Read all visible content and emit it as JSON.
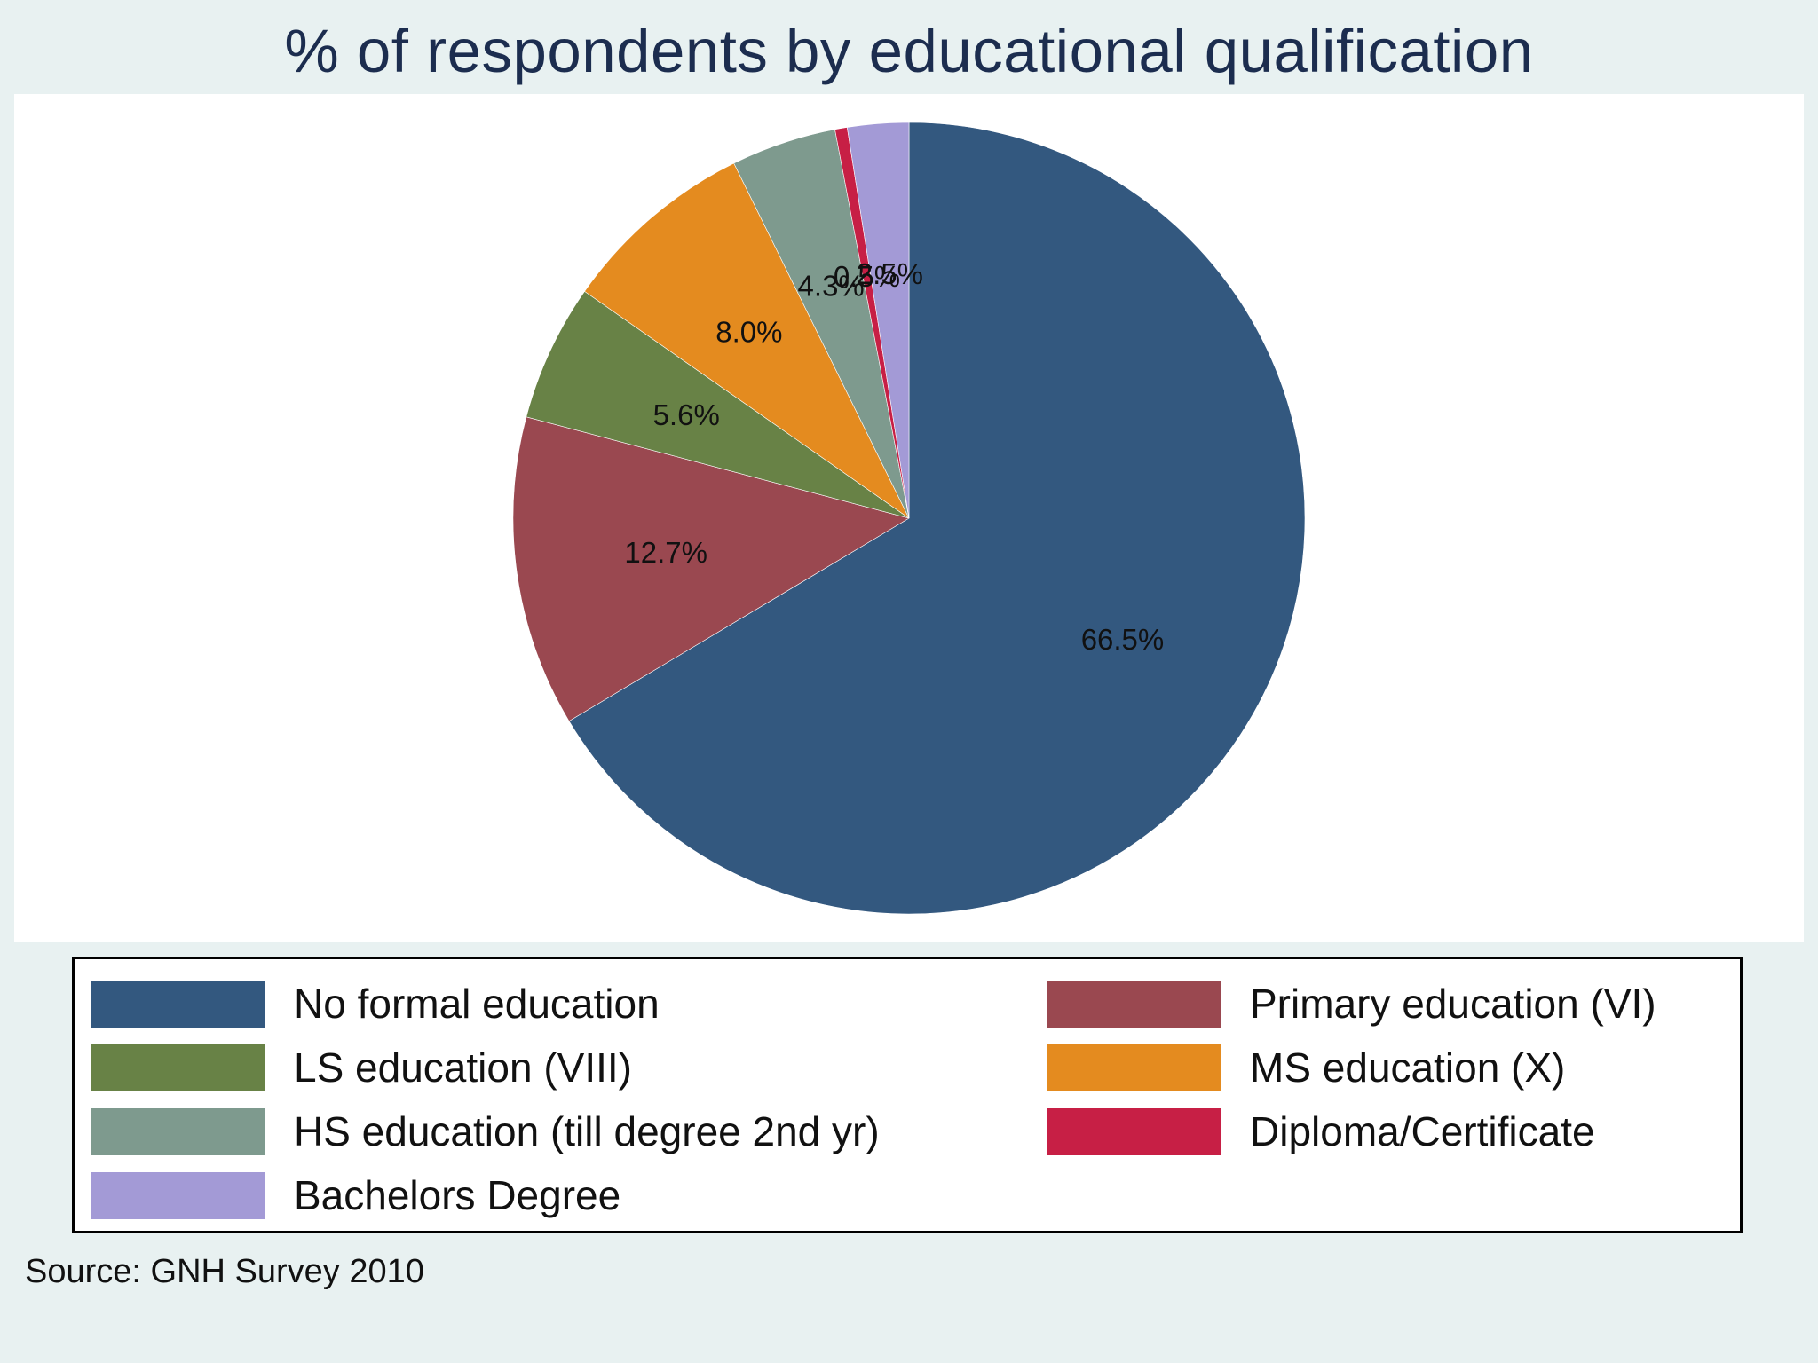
{
  "title": "% of respondents by educational qualification",
  "source": "Source: GNH Survey 2010",
  "chart_data": {
    "type": "pie",
    "title": "% of respondents by educational qualification",
    "direction": "clockwise",
    "start": "12 o'clock",
    "label_format": "one decimal with %",
    "legend_placement": "bottom",
    "slices": [
      {
        "label": "No formal education",
        "value": 66.5,
        "display": "66.5%",
        "color": "#33587f"
      },
      {
        "label": "Primary education (VI)",
        "value": 12.7,
        "display": "12.7%",
        "color": "#9a4850"
      },
      {
        "label": "LS education (VIII)",
        "value": 5.6,
        "display": "5.6%",
        "color": "#688246"
      },
      {
        "label": "MS education (X)",
        "value": 8.0,
        "display": "8.0%",
        "color": "#e48b1f"
      },
      {
        "label": "HS education (till degree 2nd yr)",
        "value": 4.3,
        "display": "4.3%",
        "color": "#7e9a8e"
      },
      {
        "label": "Diploma/Certificate",
        "value": 0.5,
        "display": "0.5%",
        "color": "#c71f45"
      },
      {
        "label": "Bachelors Degree",
        "value": 2.5,
        "display": "2.5%",
        "color": "#a39ad6"
      }
    ]
  },
  "legend": {
    "items": [
      {
        "label": "No formal education",
        "color": "#33587f"
      },
      {
        "label": "Primary education (VI)",
        "color": "#9a4850"
      },
      {
        "label": "LS education (VIII)",
        "color": "#688246"
      },
      {
        "label": "MS education (X)",
        "color": "#e48b1f"
      },
      {
        "label": "HS education (till degree 2nd yr)",
        "color": "#7e9a8e"
      },
      {
        "label": "Diploma/Certificate",
        "color": "#c71f45"
      },
      {
        "label": "Bachelors Degree",
        "color": "#a39ad6"
      }
    ]
  }
}
